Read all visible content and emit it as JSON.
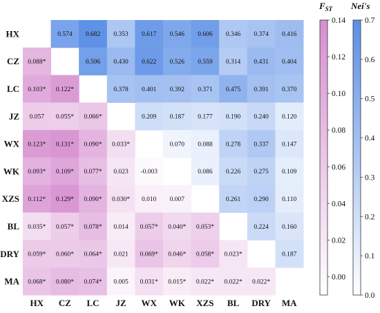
{
  "chart_data": {
    "type": "heatmap",
    "populations": [
      "HX",
      "CZ",
      "LC",
      "JZ",
      "WX",
      "WK",
      "XZS",
      "BL",
      "DRY",
      "MA"
    ],
    "lower_triangle": {
      "name": "F",
      "name_sub": "ST",
      "colormap": {
        "low": "#ffffff",
        "high": "#d68fd0"
      },
      "range": [
        -0.01,
        0.14
      ],
      "ticks": [
        "0.00",
        "0.02",
        "0.04",
        "0.06",
        "0.08",
        "0.10",
        "0.12",
        "0.14"
      ],
      "tick_values": [
        0.0,
        0.02,
        0.04,
        0.06,
        0.08,
        0.1,
        0.12,
        0.14
      ],
      "cells": [
        {
          "row": 1,
          "col": 0,
          "value": 0.088,
          "label": "0.088*"
        },
        {
          "row": 2,
          "col": 0,
          "value": 0.103,
          "label": "0.103*"
        },
        {
          "row": 2,
          "col": 1,
          "value": 0.122,
          "label": "0.122*"
        },
        {
          "row": 3,
          "col": 0,
          "value": 0.057,
          "label": "0.057"
        },
        {
          "row": 3,
          "col": 1,
          "value": 0.055,
          "label": "0.055*"
        },
        {
          "row": 3,
          "col": 2,
          "value": 0.066,
          "label": "0.066*"
        },
        {
          "row": 4,
          "col": 0,
          "value": 0.123,
          "label": "0.123*"
        },
        {
          "row": 4,
          "col": 1,
          "value": 0.131,
          "label": "0.131*"
        },
        {
          "row": 4,
          "col": 2,
          "value": 0.09,
          "label": "0.090*"
        },
        {
          "row": 4,
          "col": 3,
          "value": 0.033,
          "label": "0.033*"
        },
        {
          "row": 5,
          "col": 0,
          "value": 0.093,
          "label": "0.093*"
        },
        {
          "row": 5,
          "col": 1,
          "value": 0.109,
          "label": "0.109*"
        },
        {
          "row": 5,
          "col": 2,
          "value": 0.077,
          "label": "0.077*"
        },
        {
          "row": 5,
          "col": 3,
          "value": 0.023,
          "label": "0.023"
        },
        {
          "row": 5,
          "col": 4,
          "value": -0.003,
          "label": "-0.003"
        },
        {
          "row": 6,
          "col": 0,
          "value": 0.112,
          "label": "0.112*"
        },
        {
          "row": 6,
          "col": 1,
          "value": 0.129,
          "label": "0.129*"
        },
        {
          "row": 6,
          "col": 2,
          "value": 0.09,
          "label": "0.090*"
        },
        {
          "row": 6,
          "col": 3,
          "value": 0.03,
          "label": "0.030*"
        },
        {
          "row": 6,
          "col": 4,
          "value": 0.01,
          "label": "0.010"
        },
        {
          "row": 6,
          "col": 5,
          "value": 0.007,
          "label": "0.007"
        },
        {
          "row": 7,
          "col": 0,
          "value": 0.035,
          "label": "0.035*"
        },
        {
          "row": 7,
          "col": 1,
          "value": 0.057,
          "label": "0.057*"
        },
        {
          "row": 7,
          "col": 2,
          "value": 0.078,
          "label": "0.078*"
        },
        {
          "row": 7,
          "col": 3,
          "value": 0.014,
          "label": "0.014"
        },
        {
          "row": 7,
          "col": 4,
          "value": 0.057,
          "label": "0.057*"
        },
        {
          "row": 7,
          "col": 5,
          "value": 0.04,
          "label": "0.040*"
        },
        {
          "row": 7,
          "col": 6,
          "value": 0.053,
          "label": "0.053*"
        },
        {
          "row": 8,
          "col": 0,
          "value": 0.059,
          "label": "0.059*"
        },
        {
          "row": 8,
          "col": 1,
          "value": 0.06,
          "label": "0.060*"
        },
        {
          "row": 8,
          "col": 2,
          "value": 0.064,
          "label": "0.064*"
        },
        {
          "row": 8,
          "col": 3,
          "value": 0.021,
          "label": "0.021"
        },
        {
          "row": 8,
          "col": 4,
          "value": 0.069,
          "label": "0.069*"
        },
        {
          "row": 8,
          "col": 5,
          "value": 0.046,
          "label": "0.046*"
        },
        {
          "row": 8,
          "col": 6,
          "value": 0.058,
          "label": "0.058*"
        },
        {
          "row": 8,
          "col": 7,
          "value": 0.023,
          "label": "0.023*"
        },
        {
          "row": 9,
          "col": 0,
          "value": 0.068,
          "label": "0.068*"
        },
        {
          "row": 9,
          "col": 1,
          "value": 0.08,
          "label": "0.080*"
        },
        {
          "row": 9,
          "col": 2,
          "value": 0.074,
          "label": "0.074*"
        },
        {
          "row": 9,
          "col": 3,
          "value": 0.005,
          "label": "0.005"
        },
        {
          "row": 9,
          "col": 4,
          "value": 0.031,
          "label": "0.031*"
        },
        {
          "row": 9,
          "col": 5,
          "value": 0.015,
          "label": "0.015*"
        },
        {
          "row": 9,
          "col": 6,
          "value": 0.022,
          "label": "0.022*"
        },
        {
          "row": 9,
          "col": 7,
          "value": 0.022,
          "label": "0.022*"
        },
        {
          "row": 9,
          "col": 8,
          "value": 0.022,
          "label": "0.022*"
        }
      ]
    },
    "upper_triangle": {
      "name": "Nei's",
      "colormap": {
        "low": "#ffffff",
        "high": "#5b8fe6"
      },
      "range": [
        0.0,
        0.7
      ],
      "ticks": [
        "0.0",
        "0.1",
        "0.2",
        "0.3",
        "0.4",
        "0.5",
        "0.6",
        "0.7"
      ],
      "tick_values": [
        0.0,
        0.1,
        0.2,
        0.3,
        0.4,
        0.5,
        0.6,
        0.7
      ],
      "cells": [
        {
          "row": 0,
          "col": 1,
          "value": 0.574,
          "label": "0.574"
        },
        {
          "row": 0,
          "col": 2,
          "value": 0.682,
          "label": "0.682"
        },
        {
          "row": 0,
          "col": 3,
          "value": 0.353,
          "label": "0.353"
        },
        {
          "row": 0,
          "col": 4,
          "value": 0.617,
          "label": "0.617"
        },
        {
          "row": 0,
          "col": 5,
          "value": 0.546,
          "label": "0.546"
        },
        {
          "row": 0,
          "col": 6,
          "value": 0.606,
          "label": "0.606"
        },
        {
          "row": 0,
          "col": 7,
          "value": 0.346,
          "label": "0.346"
        },
        {
          "row": 0,
          "col": 8,
          "value": 0.374,
          "label": "0.374"
        },
        {
          "row": 0,
          "col": 9,
          "value": 0.416,
          "label": "0.416"
        },
        {
          "row": 1,
          "col": 2,
          "value": 0.596,
          "label": "0.596"
        },
        {
          "row": 1,
          "col": 3,
          "value": 0.43,
          "label": "0.430"
        },
        {
          "row": 1,
          "col": 4,
          "value": 0.622,
          "label": "0.622"
        },
        {
          "row": 1,
          "col": 5,
          "value": 0.526,
          "label": "0.526"
        },
        {
          "row": 1,
          "col": 6,
          "value": 0.559,
          "label": "0.559"
        },
        {
          "row": 1,
          "col": 7,
          "value": 0.314,
          "label": "0.314"
        },
        {
          "row": 1,
          "col": 8,
          "value": 0.431,
          "label": "0.431"
        },
        {
          "row": 1,
          "col": 9,
          "value": 0.404,
          "label": "0.404"
        },
        {
          "row": 2,
          "col": 3,
          "value": 0.378,
          "label": "0.378"
        },
        {
          "row": 2,
          "col": 4,
          "value": 0.401,
          "label": "0.401"
        },
        {
          "row": 2,
          "col": 5,
          "value": 0.392,
          "label": "0.392"
        },
        {
          "row": 2,
          "col": 6,
          "value": 0.371,
          "label": "0.371"
        },
        {
          "row": 2,
          "col": 7,
          "value": 0.475,
          "label": "0.475"
        },
        {
          "row": 2,
          "col": 8,
          "value": 0.391,
          "label": "0.391"
        },
        {
          "row": 2,
          "col": 9,
          "value": 0.37,
          "label": "0.370"
        },
        {
          "row": 3,
          "col": 4,
          "value": 0.209,
          "label": "0.209"
        },
        {
          "row": 3,
          "col": 5,
          "value": 0.187,
          "label": "0.187"
        },
        {
          "row": 3,
          "col": 6,
          "value": 0.177,
          "label": "0.177"
        },
        {
          "row": 3,
          "col": 7,
          "value": 0.19,
          "label": "0.190"
        },
        {
          "row": 3,
          "col": 8,
          "value": 0.24,
          "label": "0.240"
        },
        {
          "row": 3,
          "col": 9,
          "value": 0.12,
          "label": "0.120"
        },
        {
          "row": 4,
          "col": 5,
          "value": 0.07,
          "label": "0.070"
        },
        {
          "row": 4,
          "col": 6,
          "value": 0.088,
          "label": "0.088"
        },
        {
          "row": 4,
          "col": 7,
          "value": 0.278,
          "label": "0.278"
        },
        {
          "row": 4,
          "col": 8,
          "value": 0.337,
          "label": "0.337"
        },
        {
          "row": 4,
          "col": 9,
          "value": 0.147,
          "label": "0.147"
        },
        {
          "row": 5,
          "col": 6,
          "value": 0.086,
          "label": "0.086"
        },
        {
          "row": 5,
          "col": 7,
          "value": 0.226,
          "label": "0.226"
        },
        {
          "row": 5,
          "col": 8,
          "value": 0.275,
          "label": "0.275"
        },
        {
          "row": 5,
          "col": 9,
          "value": 0.109,
          "label": "0.109"
        },
        {
          "row": 6,
          "col": 7,
          "value": 0.261,
          "label": "0.261"
        },
        {
          "row": 6,
          "col": 8,
          "value": 0.29,
          "label": "0.290"
        },
        {
          "row": 6,
          "col": 9,
          "value": 0.11,
          "label": "0.110"
        },
        {
          "row": 7,
          "col": 8,
          "value": 0.224,
          "label": "0.224"
        },
        {
          "row": 7,
          "col": 9,
          "value": 0.16,
          "label": "0.160"
        },
        {
          "row": 8,
          "col": 9,
          "value": 0.187,
          "label": "0.187"
        }
      ]
    }
  }
}
